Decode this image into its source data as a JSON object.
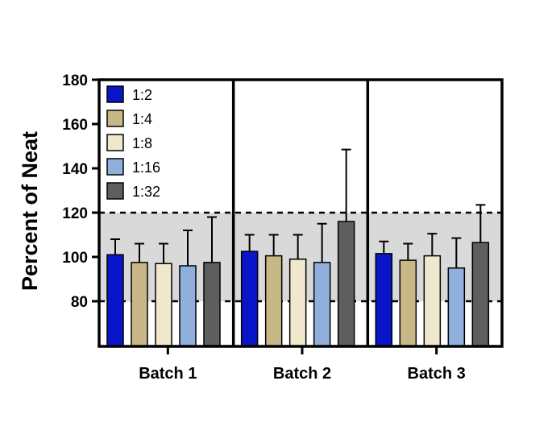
{
  "chart_data": {
    "type": "bar",
    "ylabel": "Percent of Neat",
    "ylim": [
      60,
      180
    ],
    "yticks": [
      80,
      100,
      120,
      140,
      160,
      180
    ],
    "grid": false,
    "legend_position": "top-left",
    "reference_band": {
      "from": 80,
      "to": 120,
      "color": "#d9d9d9"
    },
    "reference_lines": [
      80,
      120
    ],
    "categories": [
      "Batch 1",
      "Batch 2",
      "Batch 3"
    ],
    "series": [
      {
        "name": "1:2",
        "color": "#0a14c8",
        "values": [
          101,
          102.5,
          101.5
        ],
        "errors": [
          7,
          7.5,
          5.5
        ]
      },
      {
        "name": "1:4",
        "color": "#c8b887",
        "values": [
          97.5,
          100.5,
          98.5
        ],
        "errors": [
          8.5,
          9.5,
          7.5
        ]
      },
      {
        "name": "1:8",
        "color": "#efe8cc",
        "values": [
          97,
          99,
          100.5
        ],
        "errors": [
          9,
          11,
          10
        ]
      },
      {
        "name": "1:16",
        "color": "#8fb0dd",
        "values": [
          96,
          97.5,
          95
        ],
        "errors": [
          16,
          17.5,
          13.5
        ]
      },
      {
        "name": "1:32",
        "color": "#5e5e5e",
        "values": [
          97.5,
          116,
          106.5
        ],
        "errors": [
          20.5,
          32.5,
          17
        ]
      }
    ]
  }
}
